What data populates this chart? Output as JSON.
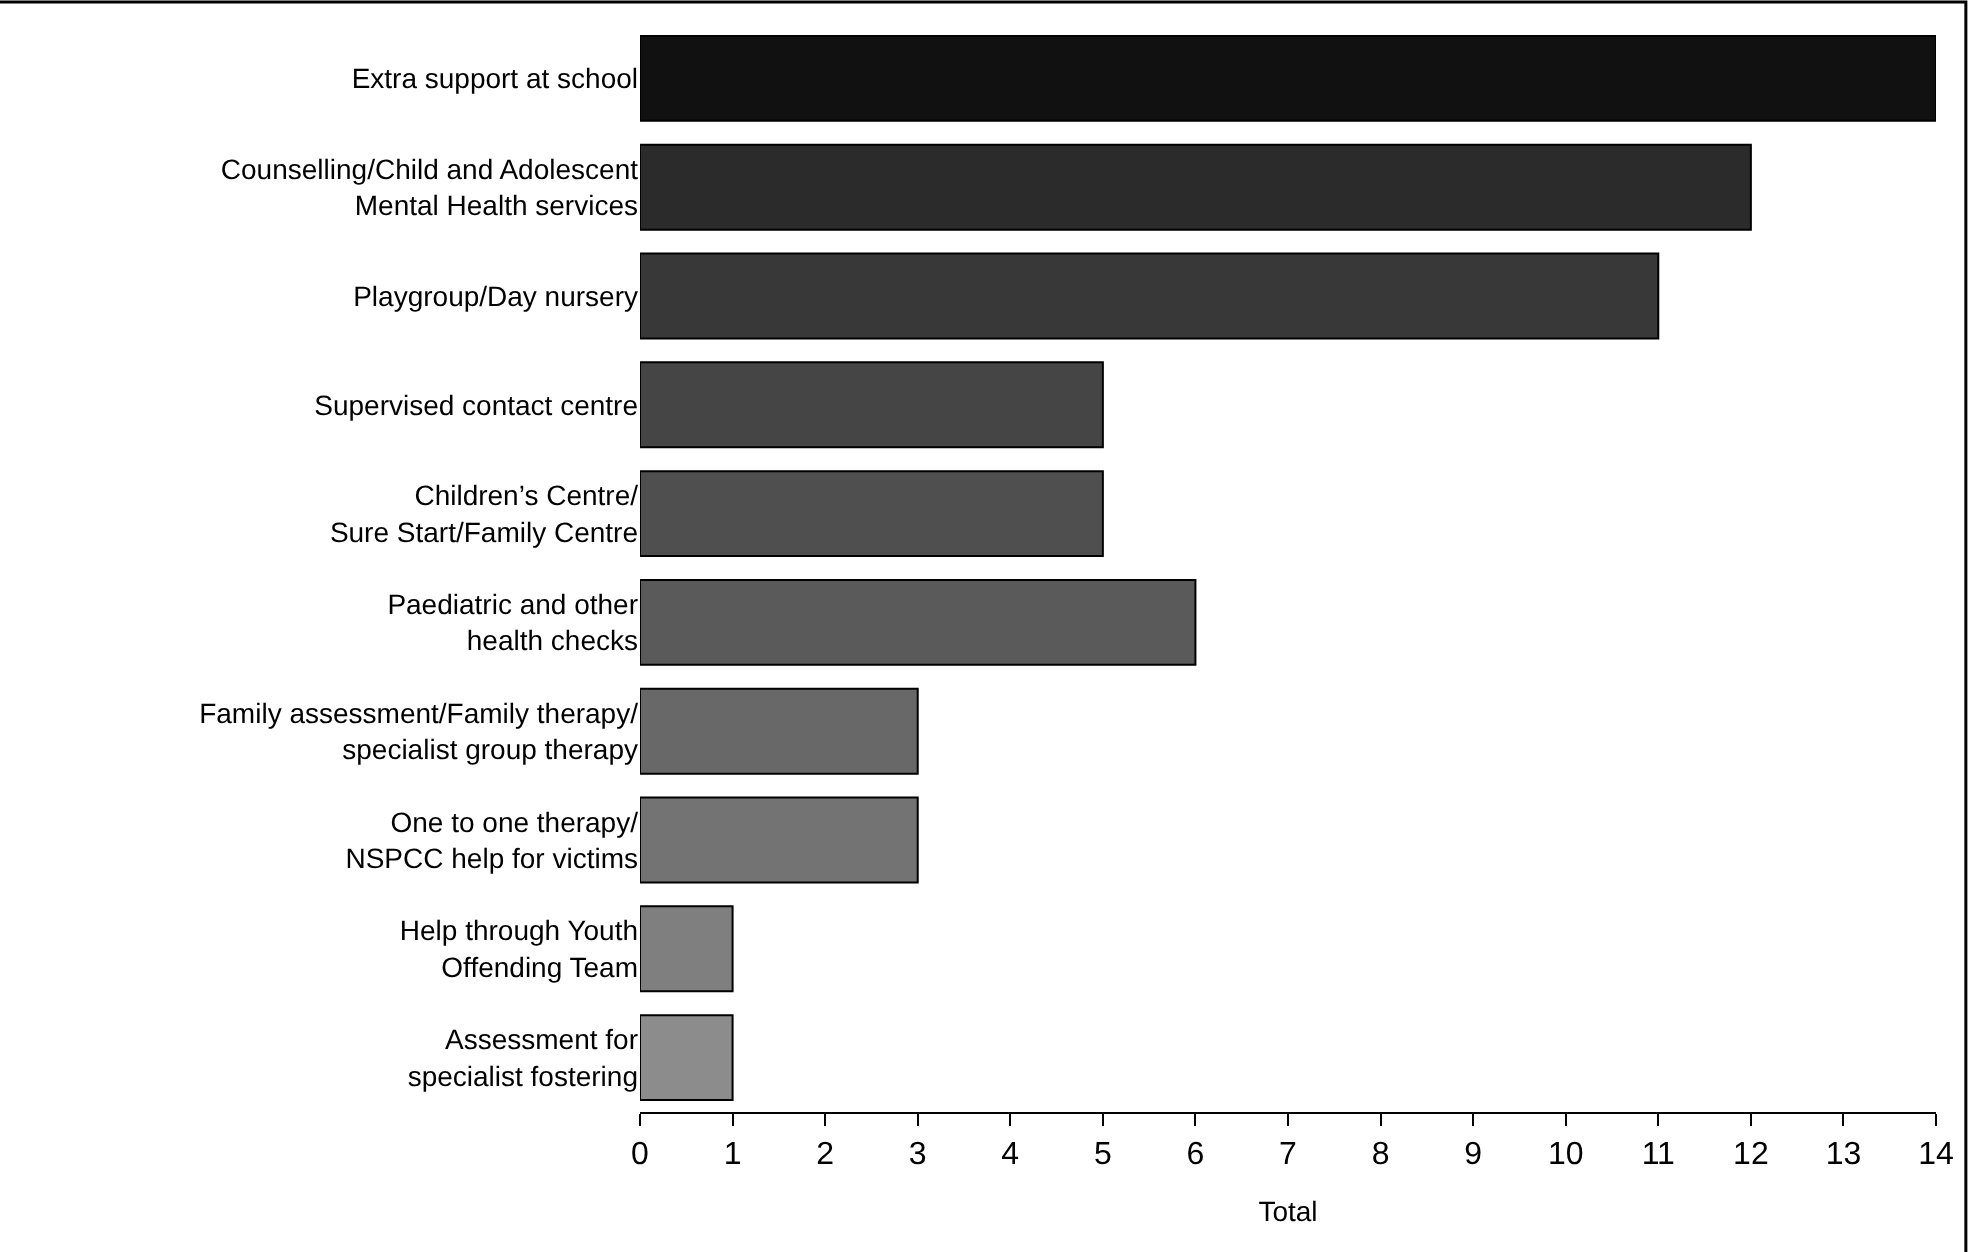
{
  "chart_data": {
    "type": "bar",
    "orientation": "horizontal",
    "xlabel": "Total",
    "categories": [
      "Extra support at school",
      "Counselling/Child and Adolescent\nMental Health services",
      "Playgroup/Day nursery",
      "Supervised contact centre",
      "Children’s Centre/\nSure Start/Family Centre",
      "Paediatric and other\nhealth checks",
      "Family assessment/Family therapy/\nspecialist group therapy",
      "One to one therapy/\nNSPCC help for victims",
      "Help through Youth\nOffending Team",
      "Assessment for\nspecialist fostering"
    ],
    "values": [
      14,
      12,
      11,
      5,
      5,
      6,
      3,
      3,
      1,
      1
    ],
    "colors": [
      "#111111",
      "#2b2b2b",
      "#383838",
      "#454545",
      "#4f4f4f",
      "#5a5a5a",
      "#686868",
      "#737373",
      "#7f7f7f",
      "#8c8c8c"
    ],
    "xlim": [
      0,
      14
    ],
    "xticks": [
      0,
      1,
      2,
      3,
      4,
      5,
      6,
      7,
      8,
      9,
      10,
      11,
      12,
      13,
      14
    ]
  }
}
